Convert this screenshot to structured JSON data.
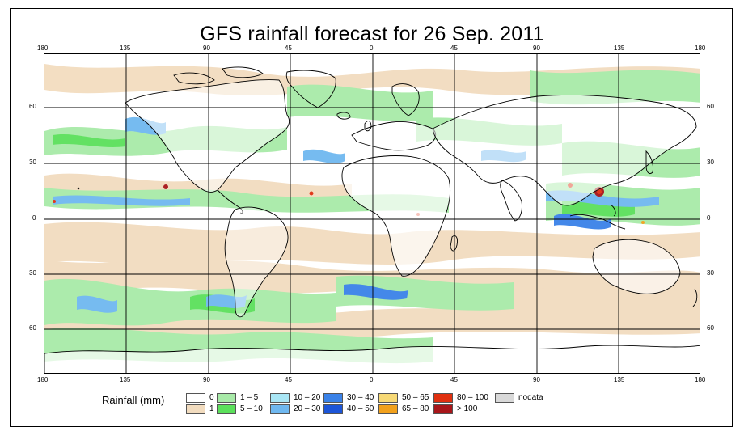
{
  "title": "GFS rainfall forecast for 26 Sep. 2011",
  "map": {
    "lon_ticks": [
      "180",
      "135",
      "90",
      "45",
      "0",
      "45",
      "90",
      "135",
      "180"
    ],
    "lat_ticks": [
      "60",
      "30",
      "0",
      "30",
      "60"
    ]
  },
  "legend": {
    "title": "Rainfall (mm)",
    "items": [
      {
        "label": "0",
        "color": "#ffffff"
      },
      {
        "label": "1",
        "color": "#f2dcbf"
      },
      {
        "label": "1 – 5",
        "color": "#a8eaa8"
      },
      {
        "label": "5 – 10",
        "color": "#5be05b"
      },
      {
        "label": "10 – 20",
        "color": "#a9e6f5"
      },
      {
        "label": "20 – 30",
        "color": "#6fb8f0"
      },
      {
        "label": "30 – 40",
        "color": "#3a82e8"
      },
      {
        "label": "40 – 50",
        "color": "#1c55d8"
      },
      {
        "label": "50 – 65",
        "color": "#f7d976"
      },
      {
        "label": "65 – 80",
        "color": "#f2a11c"
      },
      {
        "label": "80 – 100",
        "color": "#e03010"
      },
      {
        "label": "> 100",
        "color": "#a8161a"
      },
      {
        "label": "nodata",
        "color": "#d9d9d9"
      }
    ]
  }
}
